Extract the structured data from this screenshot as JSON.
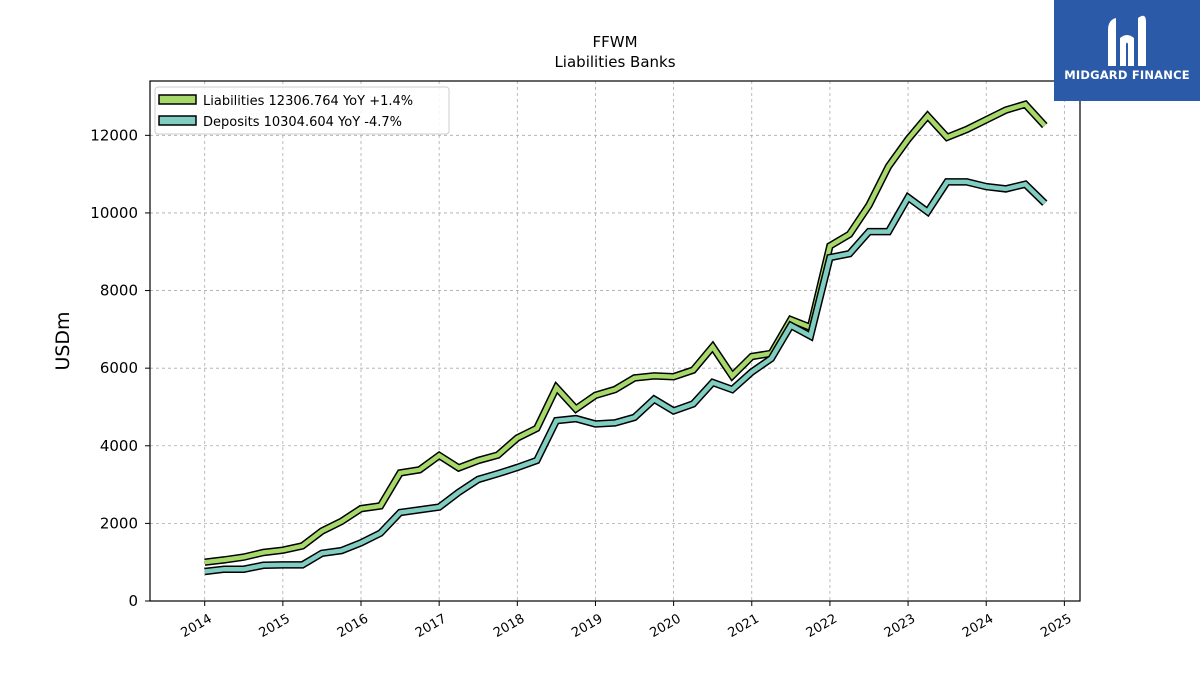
{
  "chart_data": {
    "type": "line",
    "title": "FFWM",
    "subtitle": "Liabilities Banks",
    "ylabel": "USDm",
    "xlabel": "",
    "ylim": [
      0,
      13400
    ],
    "xlim": [
      2013.3,
      2025.2
    ],
    "yticks": [
      0,
      2000,
      4000,
      6000,
      8000,
      10000,
      12000
    ],
    "xticks": [
      2014,
      2015,
      2016,
      2017,
      2018,
      2019,
      2020,
      2021,
      2022,
      2023,
      2024,
      2025
    ],
    "grid": true,
    "legend_position": "top-left",
    "x": [
      2014.0,
      2014.25,
      2014.5,
      2014.75,
      2015.0,
      2015.25,
      2015.5,
      2015.75,
      2016.0,
      2016.25,
      2016.5,
      2016.75,
      2017.0,
      2017.25,
      2017.5,
      2017.75,
      2018.0,
      2018.25,
      2018.5,
      2018.75,
      2019.0,
      2019.25,
      2019.5,
      2019.75,
      2020.0,
      2020.25,
      2020.5,
      2020.75,
      2021.0,
      2021.25,
      2021.5,
      2021.75,
      2022.0,
      2022.25,
      2022.5,
      2022.75,
      2023.0,
      2023.25,
      2023.5,
      2023.75,
      2024.0,
      2024.25,
      2024.5,
      2024.75
    ],
    "series": [
      {
        "name": "Liabilities",
        "legend": "Liabilities  12306.764 YoY +1.4%",
        "color": "#a6d96a",
        "values": [
          1000,
          1060,
          1130,
          1250,
          1310,
          1420,
          1800,
          2050,
          2380,
          2450,
          3300,
          3380,
          3750,
          3430,
          3620,
          3760,
          4200,
          4450,
          5500,
          4950,
          5300,
          5450,
          5750,
          5800,
          5780,
          5950,
          6550,
          5800,
          6300,
          6380,
          7250,
          7050,
          9150,
          9450,
          10200,
          11200,
          11900,
          12500,
          11950,
          12150,
          12400,
          12650,
          12800,
          12250
        ]
      },
      {
        "name": "Deposits",
        "legend": "Deposits  10304.604 YoY -4.7%",
        "color": "#80cdc1",
        "values": [
          760,
          820,
          820,
          920,
          930,
          930,
          1230,
          1300,
          1500,
          1750,
          2280,
          2350,
          2420,
          2800,
          3130,
          3280,
          3440,
          3620,
          4650,
          4700,
          4560,
          4590,
          4730,
          5200,
          4900,
          5080,
          5630,
          5450,
          5900,
          6250,
          7100,
          6830,
          8850,
          8950,
          9520,
          9520,
          10400,
          10030,
          10800,
          10800,
          10680,
          10620,
          10740,
          10250
        ]
      }
    ]
  },
  "logo": {
    "text": "MIDGARD FINANCE"
  }
}
